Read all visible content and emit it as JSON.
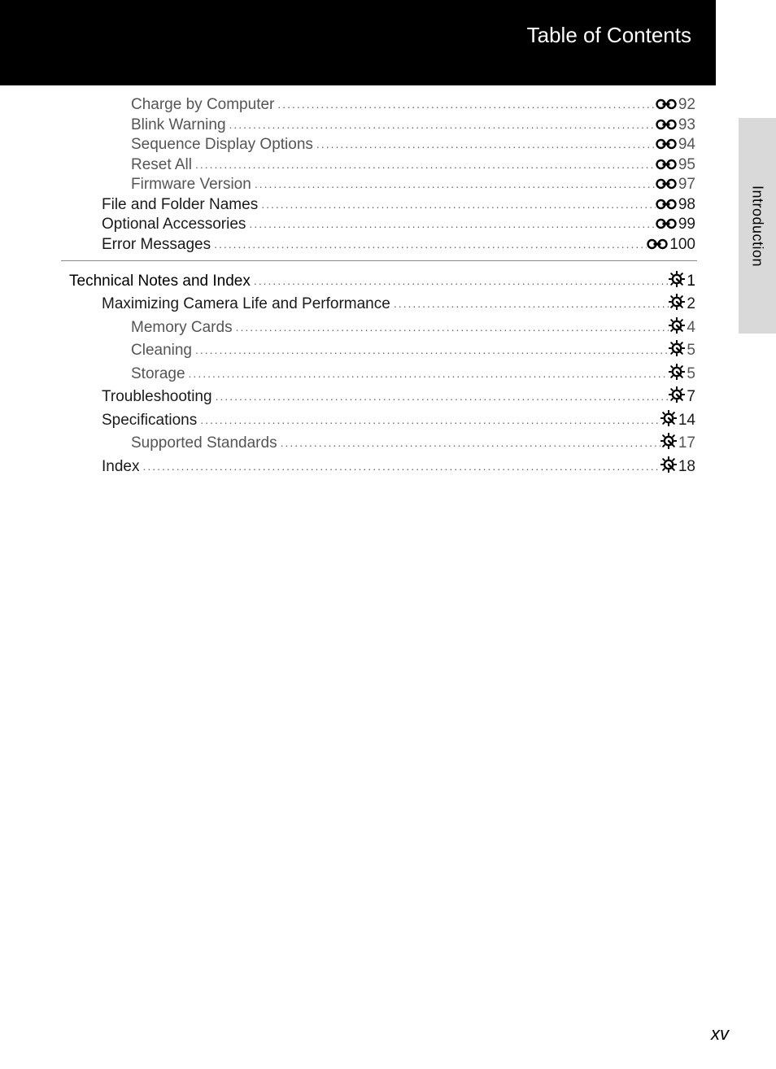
{
  "header": {
    "title": "Table of Contents"
  },
  "side_tab": {
    "label": "Introduction"
  },
  "page_number": "xv",
  "colors": {
    "header_bg": "#000000",
    "side_tab_bg": "#d9d9d9",
    "text_primary": "#1a1a1a",
    "text_muted": "#555555",
    "dot_color": "#666666",
    "divider": "#888888"
  },
  "icons": {
    "link": "link-icon",
    "info": "info-icon"
  },
  "group1": [
    {
      "level": 3,
      "title": "Charge by Computer",
      "icon": "link",
      "page": "92"
    },
    {
      "level": 3,
      "title": "Blink Warning",
      "icon": "link",
      "page": "93"
    },
    {
      "level": 3,
      "title": "Sequence Display Options",
      "icon": "link",
      "page": "94"
    },
    {
      "level": 3,
      "title": "Reset All",
      "icon": "link",
      "page": "95"
    },
    {
      "level": 3,
      "title": "Firmware Version",
      "icon": "link",
      "page": "97"
    },
    {
      "level": 2,
      "title": "File and Folder Names",
      "icon": "link",
      "page": "98"
    },
    {
      "level": 2,
      "title": "Optional Accessories",
      "icon": "link",
      "page": "99"
    },
    {
      "level": 2,
      "title": "Error Messages",
      "icon": "link",
      "page": "100"
    }
  ],
  "group2": [
    {
      "level": "section",
      "title": "Technical Notes and Index",
      "icon": "info",
      "page": "1"
    },
    {
      "level": 2,
      "title": "Maximizing Camera Life and Performance",
      "icon": "info",
      "page": "2"
    },
    {
      "level": 3,
      "title": "Memory Cards",
      "icon": "info",
      "page": "4"
    },
    {
      "level": 3,
      "title": "Cleaning",
      "icon": "info",
      "page": "5"
    },
    {
      "level": 3,
      "title": "Storage",
      "icon": "info",
      "page": "5"
    },
    {
      "level": 2,
      "title": "Troubleshooting",
      "icon": "info",
      "page": "7"
    },
    {
      "level": 2,
      "title": "Specifications",
      "icon": "info",
      "page": "14"
    },
    {
      "level": 3,
      "title": "Supported Standards",
      "icon": "info",
      "page": "17"
    },
    {
      "level": 2,
      "title": "Index",
      "icon": "info",
      "page": "18"
    }
  ]
}
